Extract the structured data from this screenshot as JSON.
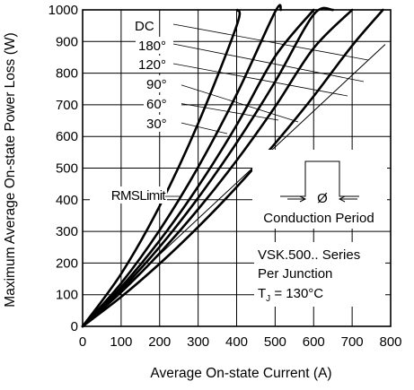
{
  "chart_data": {
    "type": "line",
    "title": "",
    "xlabel": "Average On-state Current (A)",
    "ylabel": "Maximum Average On-state Power Loss (W)",
    "xlim": [
      0,
      800
    ],
    "ylim": [
      0,
      1000
    ],
    "xticks": [
      "0",
      "100",
      "200",
      "300",
      "400",
      "500",
      "600",
      "700",
      "800"
    ],
    "yticks": [
      "0",
      "100",
      "200",
      "300",
      "400",
      "500",
      "600",
      "700",
      "800",
      "900",
      "1000"
    ],
    "grid": true,
    "series": [
      {
        "name": "DC",
        "x": [
          0,
          100,
          200,
          300,
          400,
          500,
          600,
          700,
          780
        ],
        "y": [
          0,
          93,
          198,
          314,
          440,
          578,
          727,
          887,
          1000
        ]
      },
      {
        "name": "180°",
        "x": [
          0,
          100,
          200,
          300,
          400,
          500,
          600,
          700
        ],
        "y": [
          0,
          108,
          231,
          370,
          524,
          694,
          879,
          1000
        ]
      },
      {
        "name": "120°",
        "x": [
          0,
          100,
          200,
          300,
          400,
          500,
          600,
          650
        ],
        "y": [
          0,
          116,
          251,
          406,
          580,
          773,
          985,
          1000
        ]
      },
      {
        "name": "90°",
        "x": [
          0,
          100,
          200,
          300,
          400,
          500,
          600
        ],
        "y": [
          0,
          124,
          271,
          442,
          636,
          853,
          1000
        ]
      },
      {
        "name": "60°",
        "x": [
          0,
          100,
          200,
          300,
          400,
          500,
          515
        ],
        "y": [
          0,
          136,
          304,
          503,
          733,
          994,
          1000
        ]
      },
      {
        "name": "30°",
        "x": [
          0,
          100,
          200,
          300,
          400,
          402
        ],
        "y": [
          0,
          166,
          380,
          641,
          950,
          1000
        ]
      },
      {
        "name": "RMS Limit",
        "x": [
          0,
          785
        ],
        "y": [
          0,
          890
        ]
      }
    ],
    "annotations": {
      "rms_limit": "RMSLimit",
      "conduction_period": "Conduction Period",
      "phi": "Ø",
      "series_info": "VSK.500.. Series",
      "junction": "Per Junction",
      "tj_prefix": "T",
      "tj_sub": "J",
      "tj_value": " = 130°C"
    }
  }
}
